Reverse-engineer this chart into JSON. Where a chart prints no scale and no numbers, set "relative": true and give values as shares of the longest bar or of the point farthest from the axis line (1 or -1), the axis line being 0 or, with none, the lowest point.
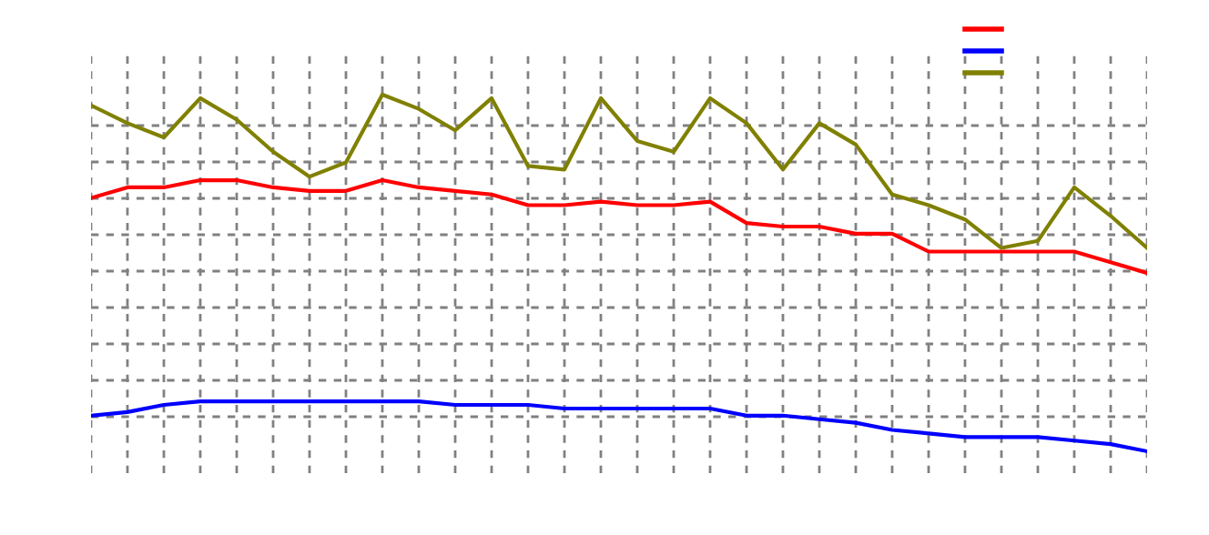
{
  "chart_data": {
    "type": "line",
    "relative": true,
    "grid": true,
    "marker": "none",
    "line_style": "solid",
    "categories": [
      null,
      null,
      null,
      null,
      null,
      null,
      null,
      null,
      null,
      null,
      null,
      null,
      null,
      null,
      null,
      null,
      null,
      null,
      null,
      null,
      null,
      null,
      null,
      null,
      null,
      null,
      null,
      null,
      null,
      null
    ],
    "series": [
      {
        "color": "#ff0000",
        "values": [
          0.71,
          0.74,
          0.74,
          0.76,
          0.76,
          0.74,
          0.73,
          0.73,
          0.76,
          0.74,
          0.73,
          0.72,
          0.69,
          0.69,
          0.7,
          0.69,
          0.69,
          0.7,
          0.64,
          0.63,
          0.63,
          0.61,
          0.61,
          0.56,
          0.56,
          0.56,
          0.56,
          0.56,
          0.53,
          0.5
        ]
      },
      {
        "color": "#0000ff",
        "values": [
          0.1,
          0.11,
          0.13,
          0.14,
          0.14,
          0.14,
          0.14,
          0.14,
          0.14,
          0.14,
          0.13,
          0.13,
          0.13,
          0.12,
          0.12,
          0.12,
          0.12,
          0.12,
          0.1,
          0.1,
          0.09,
          0.08,
          0.06,
          0.05,
          0.04,
          0.04,
          0.04,
          0.03,
          0.02,
          0
        ]
      },
      {
        "color": "#808000",
        "values": [
          0.97,
          0.92,
          0.88,
          0.99,
          0.93,
          0.84,
          0.77,
          0.81,
          1.0,
          0.96,
          0.9,
          0.99,
          0.8,
          0.79,
          0.99,
          0.87,
          0.84,
          0.99,
          0.92,
          0.79,
          0.92,
          0.86,
          0.72,
          0.69,
          0.65,
          0.57,
          0.59,
          0.74,
          0.66,
          0.57
        ]
      }
    ]
  }
}
